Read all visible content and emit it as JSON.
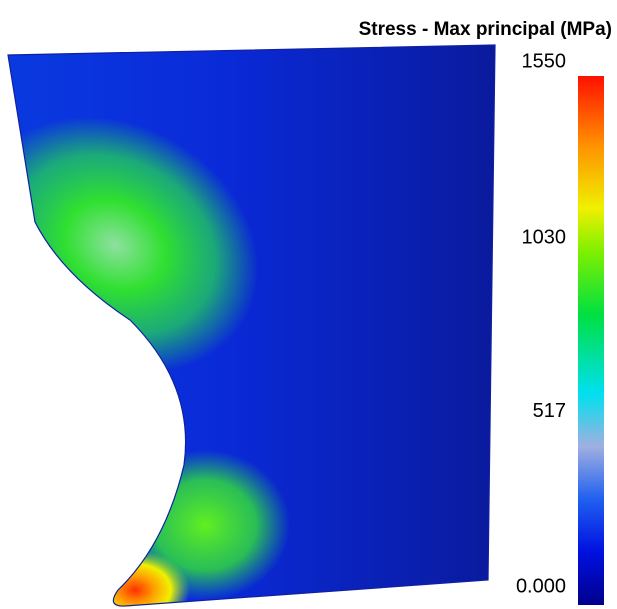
{
  "chart_data": {
    "type": "contour",
    "title": "Stress - Max principal (MPa)",
    "clim": [
      0,
      1550
    ],
    "cticks": [
      {
        "value": 0,
        "label": "0.000"
      },
      517,
      1030,
      1550
    ]
  }
}
